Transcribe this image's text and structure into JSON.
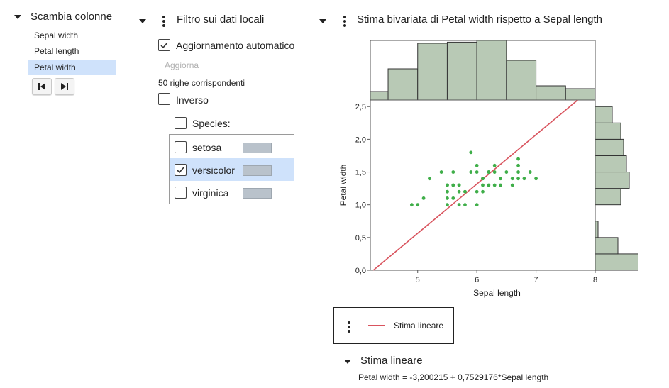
{
  "swap_panel": {
    "title": "Scambia colonne",
    "columns": [
      {
        "label": "Sepal width",
        "selected": false
      },
      {
        "label": "Petal length",
        "selected": false
      },
      {
        "label": "Petal width",
        "selected": true
      }
    ],
    "first_icon": "skip-to-start-icon",
    "last_icon": "skip-to-end-icon"
  },
  "filter_panel": {
    "title": "Filtro sui dati locali",
    "auto_update_label": "Aggiornamento automatico",
    "auto_update_checked": true,
    "update_button": "Aggiorna",
    "match_count": "50 righe corrispondenti",
    "inverse_label": "Inverso",
    "inverse_checked": false,
    "species_label": "Species:",
    "species_checked": false,
    "species": [
      {
        "label": "setosa",
        "checked": false
      },
      {
        "label": "versicolor",
        "checked": true
      },
      {
        "label": "virginica",
        "checked": false
      }
    ],
    "swatch_color": "#b9c2cb"
  },
  "chart_panel": {
    "title": "Stima bivariata di Petal width rispetto a Sepal length",
    "legend_label": "Stima lineare",
    "estimate_section": "Stima lineare",
    "equation": "Petal width = -3,200215 + 0,7529176*Sepal length"
  },
  "chart_data": {
    "type": "scatter",
    "xlabel": "Sepal length",
    "ylabel": "Petal width",
    "x_ticks": [
      "5",
      "6",
      "7",
      "8"
    ],
    "x_tick_values": [
      5,
      6,
      7,
      8
    ],
    "y_ticks": [
      "0,0",
      "0,5",
      "1,0",
      "1,5",
      "2,0",
      "2,5"
    ],
    "y_tick_values": [
      0,
      0.5,
      1.0,
      1.5,
      2.0,
      2.5
    ],
    "xlim": [
      4.2,
      8.0
    ],
    "ylim": [
      0,
      2.6
    ],
    "point_color": "#3fae49",
    "line_color": "#d9545e",
    "hist_color": "#b8c9b5",
    "points": [
      [
        4.9,
        1.0
      ],
      [
        5.0,
        1.0
      ],
      [
        5.1,
        1.1
      ],
      [
        5.2,
        1.4
      ],
      [
        5.4,
        1.5
      ],
      [
        5.5,
        1.3
      ],
      [
        5.5,
        1.2
      ],
      [
        5.5,
        1.1
      ],
      [
        5.5,
        1.0
      ],
      [
        5.5,
        1.3
      ],
      [
        5.5,
        1.2
      ],
      [
        5.6,
        1.3
      ],
      [
        5.6,
        1.5
      ],
      [
        5.6,
        1.3
      ],
      [
        5.6,
        1.1
      ],
      [
        5.7,
        1.2
      ],
      [
        5.7,
        1.3
      ],
      [
        5.7,
        1.0
      ],
      [
        5.7,
        1.3
      ],
      [
        5.8,
        1.2
      ],
      [
        5.8,
        1.0
      ],
      [
        5.9,
        1.5
      ],
      [
        5.9,
        1.8
      ],
      [
        6.0,
        1.0
      ],
      [
        6.0,
        1.6
      ],
      [
        6.0,
        1.5
      ],
      [
        6.0,
        1.2
      ],
      [
        6.1,
        1.3
      ],
      [
        6.1,
        1.4
      ],
      [
        6.1,
        1.2
      ],
      [
        6.2,
        1.3
      ],
      [
        6.2,
        1.5
      ],
      [
        6.3,
        1.3
      ],
      [
        6.3,
        1.5
      ],
      [
        6.3,
        1.6
      ],
      [
        6.4,
        1.4
      ],
      [
        6.4,
        1.3
      ],
      [
        6.5,
        1.5
      ],
      [
        6.6,
        1.3
      ],
      [
        6.6,
        1.4
      ],
      [
        6.7,
        1.4
      ],
      [
        6.7,
        1.5
      ],
      [
        6.7,
        1.7
      ],
      [
        6.7,
        1.6
      ],
      [
        6.8,
        1.4
      ],
      [
        6.9,
        1.5
      ],
      [
        7.0,
        1.4
      ],
      [
        6.1,
        1.4
      ],
      [
        5.8,
        1.2
      ],
      [
        6.2,
        1.5
      ]
    ],
    "fit": {
      "intercept": -3.200215,
      "slope": 0.7529176,
      "label": "Stima lineare"
    },
    "x_histogram": {
      "bin_edges": [
        4.2,
        4.5,
        5.0,
        5.5,
        6.0,
        6.5,
        7.0,
        7.5,
        8.0
      ],
      "heights": [
        0.15,
        0.55,
        1.0,
        1.02,
        1.05,
        0.7,
        0.25,
        0.2
      ]
    },
    "y_histogram": {
      "bin_edges": [
        0,
        0.25,
        0.5,
        0.75,
        1.0,
        1.25,
        1.5,
        1.75,
        2.0,
        2.25,
        2.5
      ],
      "widths": [
        1.0,
        0.4,
        0.05,
        0.0,
        0.45,
        0.6,
        0.55,
        0.5,
        0.45,
        0.3
      ]
    }
  }
}
